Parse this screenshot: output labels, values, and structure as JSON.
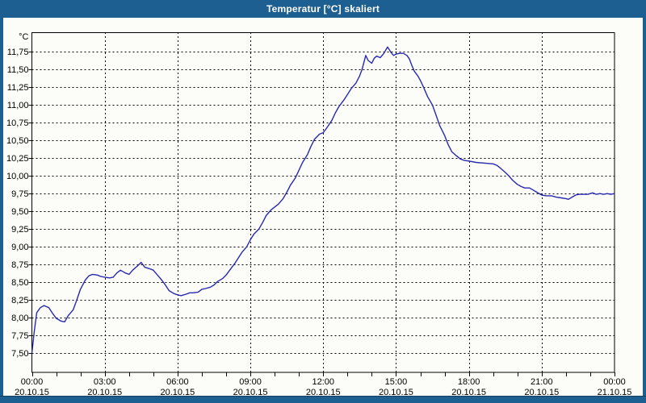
{
  "window": {
    "title": "Temperatur [°C] skaliert",
    "frame_color": "#1d5f90",
    "title_text_color": "#ffffff",
    "background_color": "#fcfdf8"
  },
  "chart_data": {
    "type": "line",
    "title": "Temperatur [°C] skaliert",
    "unit_label": "°C",
    "line_color": "#2828b0",
    "grid": "dashed black, on",
    "legend": "none",
    "xlabel": "",
    "ylabel": "°C",
    "xlim_hours": [
      0,
      24
    ],
    "ylim": [
      7.25,
      12.0
    ],
    "y_ticks": [
      {
        "value": 11.75,
        "label": "11,75"
      },
      {
        "value": 11.5,
        "label": "11,50"
      },
      {
        "value": 11.25,
        "label": "11,25"
      },
      {
        "value": 11.0,
        "label": "11,00"
      },
      {
        "value": 10.75,
        "label": "10,75"
      },
      {
        "value": 10.5,
        "label": "10,50"
      },
      {
        "value": 10.25,
        "label": "10,25"
      },
      {
        "value": 10.0,
        "label": "10,00"
      },
      {
        "value": 9.75,
        "label": "9,75"
      },
      {
        "value": 9.5,
        "label": "9,50"
      },
      {
        "value": 9.25,
        "label": "9,25"
      },
      {
        "value": 9.0,
        "label": "9,00"
      },
      {
        "value": 8.75,
        "label": "8,75"
      },
      {
        "value": 8.5,
        "label": "8,50"
      },
      {
        "value": 8.25,
        "label": "8,25"
      },
      {
        "value": 8.0,
        "label": "8,00"
      },
      {
        "value": 7.75,
        "label": "7,75"
      },
      {
        "value": 7.5,
        "label": "7,50"
      }
    ],
    "x_ticks": [
      {
        "hour": 0,
        "time": "00:00",
        "date": "20.10.15"
      },
      {
        "hour": 3,
        "time": "03:00",
        "date": "20.10.15"
      },
      {
        "hour": 6,
        "time": "06:00",
        "date": "20.10.15"
      },
      {
        "hour": 9,
        "time": "09:00",
        "date": "20.10.15"
      },
      {
        "hour": 12,
        "time": "12:00",
        "date": "20.10.15"
      },
      {
        "hour": 15,
        "time": "15:00",
        "date": "20.10.15"
      },
      {
        "hour": 18,
        "time": "18:00",
        "date": "20.10.15"
      },
      {
        "hour": 21,
        "time": "21:00",
        "date": "20.10.15"
      },
      {
        "hour": 24,
        "time": "00:00",
        "date": "21.10.15"
      }
    ],
    "minor_x_tick_every_hours": 1,
    "series": [
      {
        "name": "Temperatur",
        "points": [
          [
            0,
            7.5
          ],
          [
            0.1,
            7.81
          ],
          [
            0.2,
            8.07
          ],
          [
            0.35,
            8.14
          ],
          [
            0.5,
            8.17
          ],
          [
            0.7,
            8.14
          ],
          [
            0.85,
            8.06
          ],
          [
            1.0,
            7.99
          ],
          [
            1.2,
            7.95
          ],
          [
            1.35,
            7.94
          ],
          [
            1.5,
            8.03
          ],
          [
            1.7,
            8.11
          ],
          [
            1.85,
            8.25
          ],
          [
            2.0,
            8.4
          ],
          [
            2.2,
            8.53
          ],
          [
            2.35,
            8.59
          ],
          [
            2.5,
            8.61
          ],
          [
            2.7,
            8.6
          ],
          [
            2.85,
            8.58
          ],
          [
            3.0,
            8.57
          ],
          [
            3.2,
            8.56
          ],
          [
            3.35,
            8.57
          ],
          [
            3.5,
            8.63
          ],
          [
            3.65,
            8.67
          ],
          [
            3.85,
            8.63
          ],
          [
            4.0,
            8.61
          ],
          [
            4.15,
            8.67
          ],
          [
            4.35,
            8.73
          ],
          [
            4.5,
            8.78
          ],
          [
            4.65,
            8.71
          ],
          [
            4.85,
            8.69
          ],
          [
            5.0,
            8.67
          ],
          [
            5.15,
            8.61
          ],
          [
            5.35,
            8.53
          ],
          [
            5.5,
            8.46
          ],
          [
            5.65,
            8.38
          ],
          [
            5.85,
            8.34
          ],
          [
            6.0,
            8.32
          ],
          [
            6.15,
            8.31
          ],
          [
            6.35,
            8.33
          ],
          [
            6.5,
            8.35
          ],
          [
            6.65,
            8.35
          ],
          [
            6.85,
            8.36
          ],
          [
            7.0,
            8.4
          ],
          [
            7.15,
            8.41
          ],
          [
            7.35,
            8.43
          ],
          [
            7.5,
            8.46
          ],
          [
            7.65,
            8.51
          ],
          [
            7.85,
            8.55
          ],
          [
            8.0,
            8.6
          ],
          [
            8.15,
            8.67
          ],
          [
            8.35,
            8.76
          ],
          [
            8.5,
            8.84
          ],
          [
            8.65,
            8.92
          ],
          [
            8.85,
            9.0
          ],
          [
            9.0,
            9.1
          ],
          [
            9.15,
            9.18
          ],
          [
            9.35,
            9.25
          ],
          [
            9.5,
            9.34
          ],
          [
            9.65,
            9.44
          ],
          [
            9.85,
            9.52
          ],
          [
            10.0,
            9.56
          ],
          [
            10.15,
            9.6
          ],
          [
            10.35,
            9.68
          ],
          [
            10.5,
            9.77
          ],
          [
            10.65,
            9.87
          ],
          [
            10.85,
            9.97
          ],
          [
            11.0,
            10.08
          ],
          [
            11.15,
            10.19
          ],
          [
            11.35,
            10.3
          ],
          [
            11.5,
            10.42
          ],
          [
            11.65,
            10.52
          ],
          [
            11.85,
            10.59
          ],
          [
            12.0,
            10.61
          ],
          [
            12.15,
            10.68
          ],
          [
            12.35,
            10.78
          ],
          [
            12.5,
            10.89
          ],
          [
            12.65,
            10.98
          ],
          [
            12.85,
            11.07
          ],
          [
            13.0,
            11.15
          ],
          [
            13.15,
            11.23
          ],
          [
            13.35,
            11.31
          ],
          [
            13.5,
            11.41
          ],
          [
            13.6,
            11.5
          ],
          [
            13.75,
            11.7
          ],
          [
            13.85,
            11.63
          ],
          [
            14.0,
            11.59
          ],
          [
            14.1,
            11.66
          ],
          [
            14.2,
            11.69
          ],
          [
            14.35,
            11.67
          ],
          [
            14.5,
            11.73
          ],
          [
            14.6,
            11.79
          ],
          [
            14.65,
            11.82
          ],
          [
            14.8,
            11.74
          ],
          [
            14.9,
            11.7
          ],
          [
            15.0,
            11.72
          ],
          [
            15.15,
            11.73
          ],
          [
            15.3,
            11.73
          ],
          [
            15.45,
            11.7
          ],
          [
            15.55,
            11.65
          ],
          [
            15.65,
            11.56
          ],
          [
            15.75,
            11.48
          ],
          [
            15.9,
            11.41
          ],
          [
            16.0,
            11.35
          ],
          [
            16.15,
            11.24
          ],
          [
            16.3,
            11.12
          ],
          [
            16.5,
            11.0
          ],
          [
            16.65,
            10.86
          ],
          [
            16.8,
            10.71
          ],
          [
            17.0,
            10.57
          ],
          [
            17.15,
            10.44
          ],
          [
            17.3,
            10.34
          ],
          [
            17.5,
            10.28
          ],
          [
            17.65,
            10.24
          ],
          [
            17.8,
            10.22
          ],
          [
            18.0,
            10.21
          ],
          [
            18.3,
            10.19
          ],
          [
            18.65,
            10.18
          ],
          [
            19.0,
            10.17
          ],
          [
            19.15,
            10.15
          ],
          [
            19.3,
            10.11
          ],
          [
            19.5,
            10.05
          ],
          [
            19.65,
            10.0
          ],
          [
            19.8,
            9.94
          ],
          [
            20.0,
            9.88
          ],
          [
            20.15,
            9.85
          ],
          [
            20.3,
            9.83
          ],
          [
            20.5,
            9.83
          ],
          [
            20.65,
            9.8
          ],
          [
            20.8,
            9.77
          ],
          [
            21.0,
            9.73
          ],
          [
            21.2,
            9.72
          ],
          [
            21.4,
            9.72
          ],
          [
            21.6,
            9.7
          ],
          [
            21.8,
            9.69
          ],
          [
            22.0,
            9.68
          ],
          [
            22.1,
            9.67
          ],
          [
            22.25,
            9.7
          ],
          [
            22.4,
            9.73
          ],
          [
            22.55,
            9.74
          ],
          [
            22.7,
            9.74
          ],
          [
            22.9,
            9.74
          ],
          [
            23.1,
            9.76
          ],
          [
            23.25,
            9.74
          ],
          [
            23.4,
            9.75
          ],
          [
            23.55,
            9.74
          ],
          [
            23.7,
            9.75
          ],
          [
            23.85,
            9.74
          ],
          [
            24.0,
            9.75
          ]
        ]
      }
    ]
  }
}
